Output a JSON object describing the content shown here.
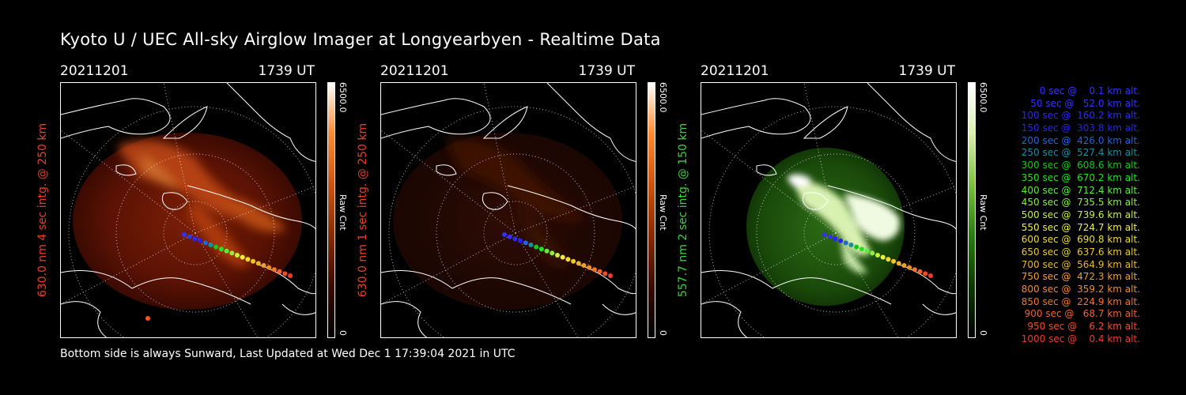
{
  "title": "Kyoto U / UEC All-sky Airglow Imager at Longyearbyen - Realtime Data",
  "footer": "Bottom side is always Sunward, Last Updated at Wed Dec  1 17:39:04 2021 in UTC",
  "panels": [
    {
      "date": "20211201",
      "time": "1739 UT",
      "ylabel": "630.0 nm 4 sec intg. @ 250 km",
      "ylabel_color": "#e8402a",
      "cbar_max": "6500.0",
      "cbar_min": "0",
      "cbar_unit": "Raw Cnt",
      "colormap": [
        "#000000",
        "#3a0a00",
        "#8a2a00",
        "#d0520c",
        "#ff8a30",
        "#ffffff"
      ]
    },
    {
      "date": "20211201",
      "time": "1739 UT",
      "ylabel": "630.0 nm 1 sec intg. @ 250 km",
      "ylabel_color": "#e8402a",
      "cbar_max": "6500.0",
      "cbar_min": "0",
      "cbar_unit": "Raw Cnt",
      "colormap": [
        "#000000",
        "#3a0a00",
        "#8a2a00",
        "#d0520c",
        "#ff8a30",
        "#ffffff"
      ]
    },
    {
      "date": "20211201",
      "time": "1739 UT",
      "ylabel": "557.7 nm 2 sec intg. @ 150 km",
      "ylabel_color": "#3ed23e",
      "cbar_max": "6500.0",
      "cbar_min": "0",
      "cbar_unit": "Raw Cnt",
      "colormap": [
        "#000000",
        "#0a3a00",
        "#2a7a10",
        "#7ac040",
        "#d8f0b0",
        "#ffffff"
      ]
    }
  ],
  "legend": [
    {
      "text": "0 sec @    0.1 km alt.",
      "color": "#3232ff"
    },
    {
      "text": "50 sec @   52.0 km alt.",
      "color": "#3232ff"
    },
    {
      "text": "100 sec @  160.2 km alt.",
      "color": "#2a2aff"
    },
    {
      "text": "150 sec @  303.8 km alt.",
      "color": "#2424f0"
    },
    {
      "text": "200 sec @  426.0 km alt.",
      "color": "#2464e0"
    },
    {
      "text": "250 sec @  527.4 km alt.",
      "color": "#1e8ca0"
    },
    {
      "text": "300 sec @  608.6 km alt.",
      "color": "#14c814"
    },
    {
      "text": "350 sec @  670.2 km alt.",
      "color": "#1ee61e"
    },
    {
      "text": "400 sec @  712.4 km alt.",
      "color": "#5af03c"
    },
    {
      "text": "450 sec @  735.5 km alt.",
      "color": "#8cf03c"
    },
    {
      "text": "500 sec @  739.6 km alt.",
      "color": "#c8f03c"
    },
    {
      "text": "550 sec @  724.7 km alt.",
      "color": "#f0f03c"
    },
    {
      "text": "600 sec @  690.8 km alt.",
      "color": "#f0dc28"
    },
    {
      "text": "650 sec @  637.6 km alt.",
      "color": "#f0c828"
    },
    {
      "text": "700 sec @  564.9 km alt.",
      "color": "#f0b428"
    },
    {
      "text": "750 sec @  472.3 km alt.",
      "color": "#f0a028"
    },
    {
      "text": "800 sec @  359.2 km alt.",
      "color": "#f08c28"
    },
    {
      "text": "850 sec @  224.9 km alt.",
      "color": "#f07828"
    },
    {
      "text": "900 sec @   68.7 km alt.",
      "color": "#f06428"
    },
    {
      "text": "950 sec @    6.2 km alt.",
      "color": "#f05028"
    },
    {
      "text": "1000 sec @    0.4 km alt.",
      "color": "#f03c28"
    }
  ]
}
